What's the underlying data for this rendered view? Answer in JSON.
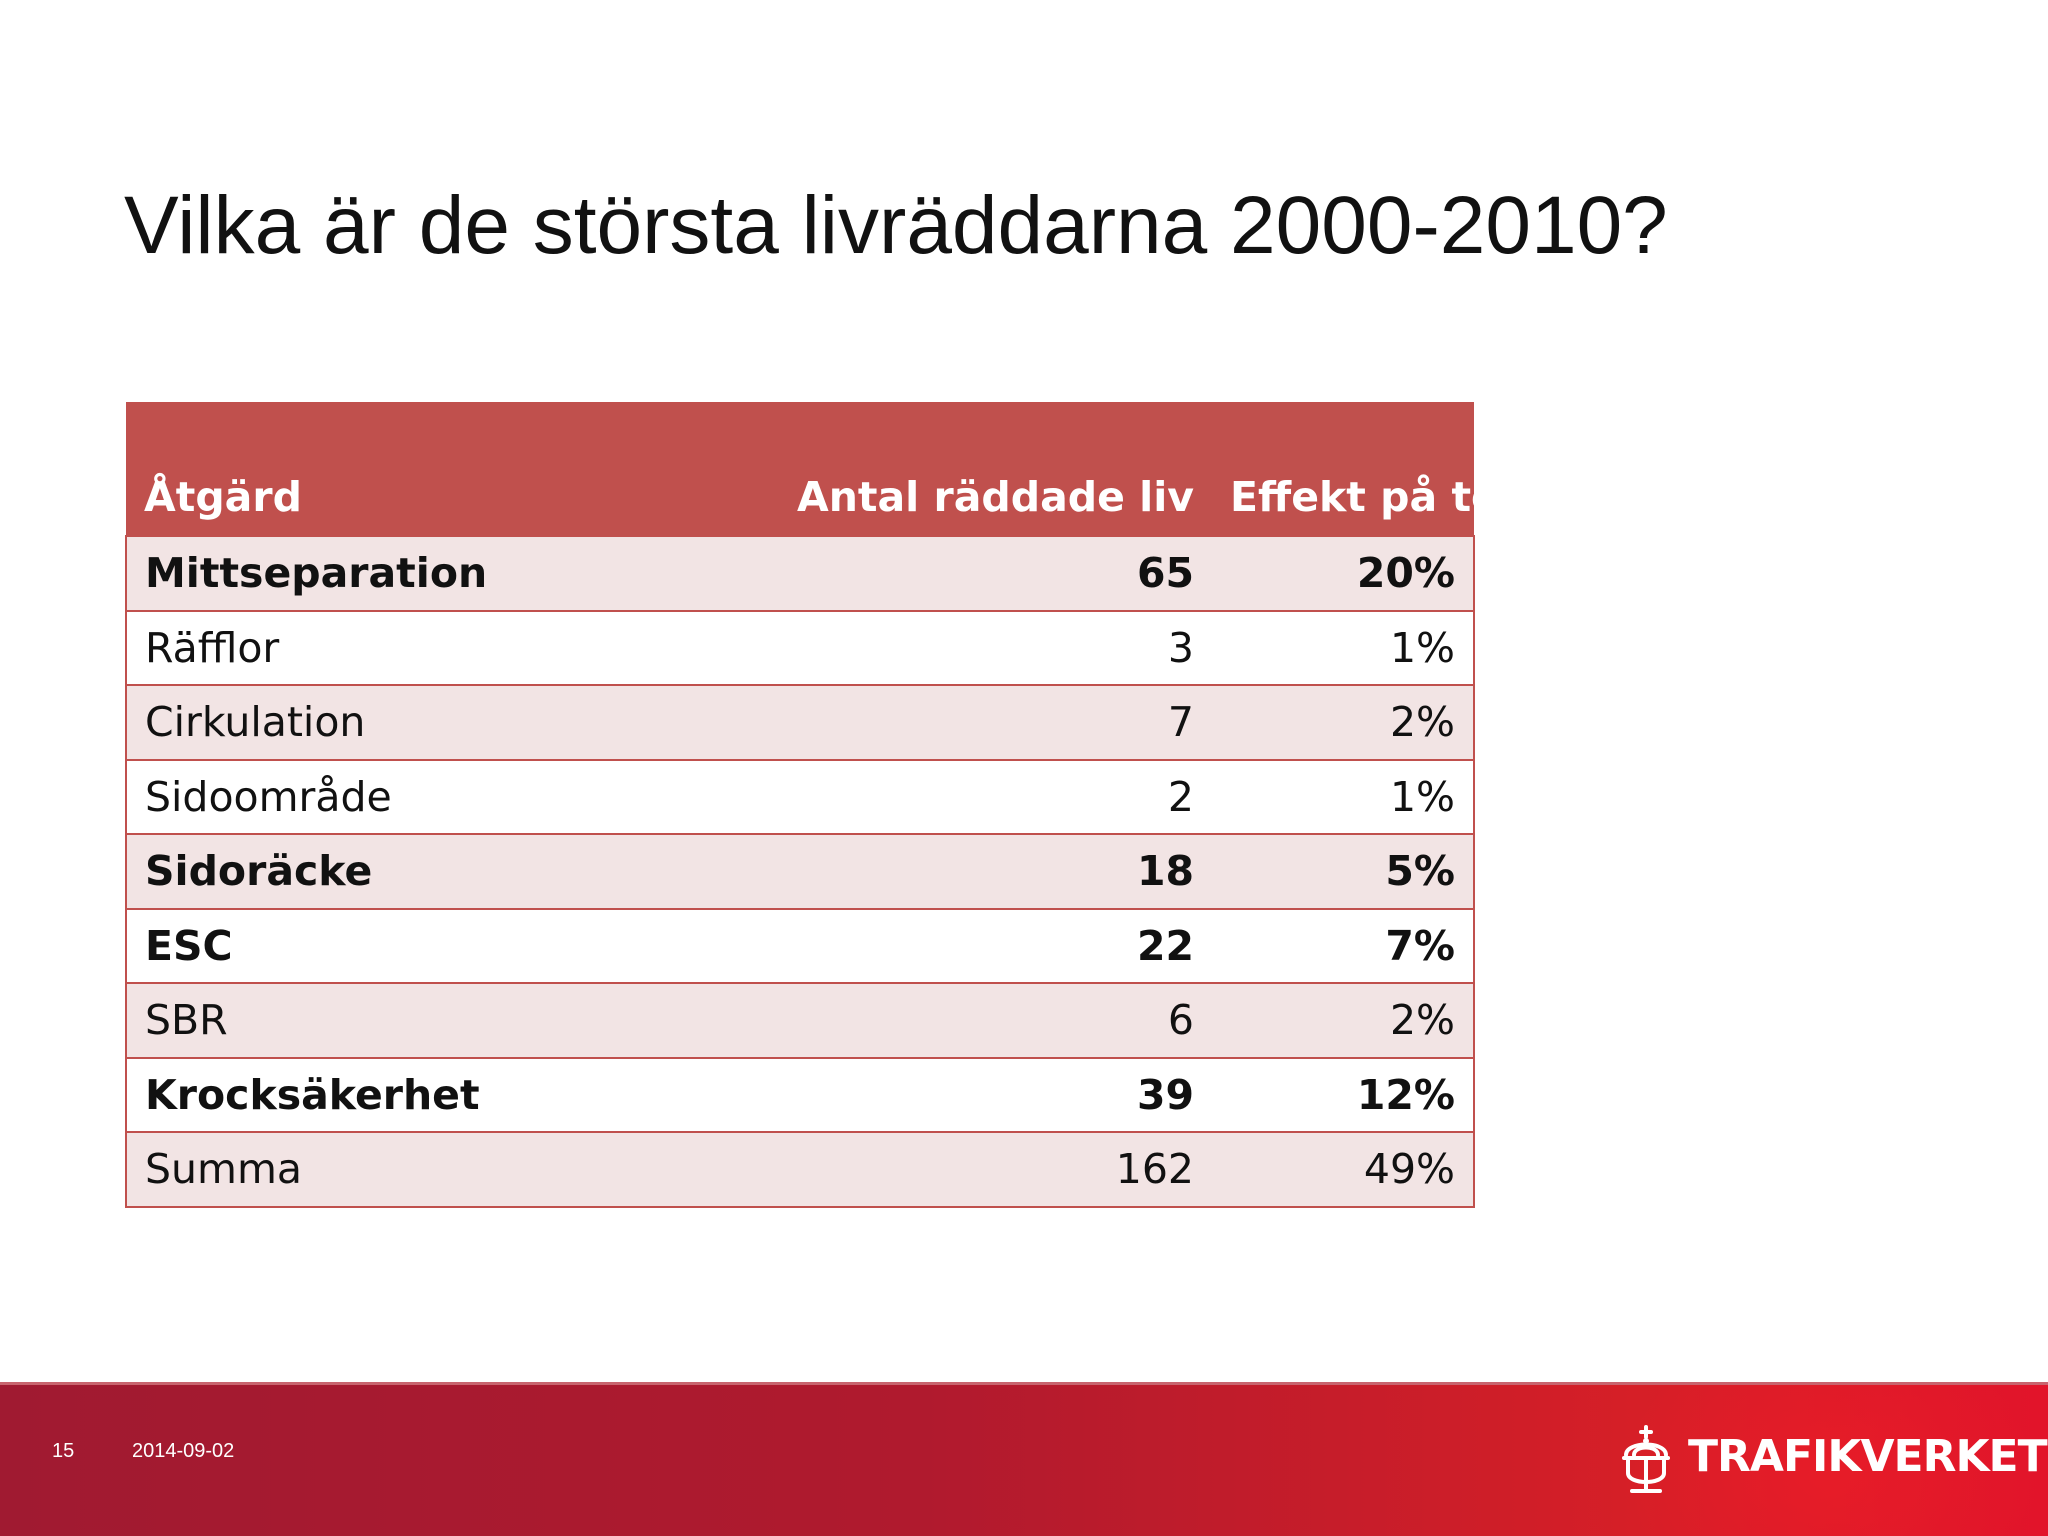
{
  "slide": {
    "title": "Vilka är de största livräddarna 2000-2010?"
  },
  "table": {
    "headers": [
      "Åtgärd",
      "Antal räddade liv",
      "Effekt på total"
    ],
    "rows": [
      {
        "measure": "Mittseparation",
        "lives_saved": "65",
        "effect": "20%",
        "bold": true
      },
      {
        "measure": "Räfflor",
        "lives_saved": "3",
        "effect": "1%",
        "bold": false
      },
      {
        "measure": "Cirkulation",
        "lives_saved": "7",
        "effect": "2%",
        "bold": false
      },
      {
        "measure": "Sidoområde",
        "lives_saved": "2",
        "effect": "1%",
        "bold": false
      },
      {
        "measure": "Sidoräcke",
        "lives_saved": "18",
        "effect": "5%",
        "bold": true
      },
      {
        "measure": "ESC",
        "lives_saved": "22",
        "effect": "7%",
        "bold": true
      },
      {
        "measure": "SBR",
        "lives_saved": "6",
        "effect": "2%",
        "bold": false
      },
      {
        "measure": "Krocksäkerhet",
        "lives_saved": "39",
        "effect": "12%",
        "bold": true
      },
      {
        "measure": "Summa",
        "lives_saved": "162",
        "effect": "49%",
        "bold": false
      }
    ]
  },
  "footer": {
    "page_number": "15",
    "date": "2014-09-02",
    "logo_text": "TRAFIKVERKET"
  },
  "colors": {
    "table_header": "#c0504d",
    "row_band": "#f2e4e4",
    "footer_left": "#a01a31",
    "footer_right": "#e2142a"
  },
  "icons": {
    "logo": "crown-icon"
  }
}
